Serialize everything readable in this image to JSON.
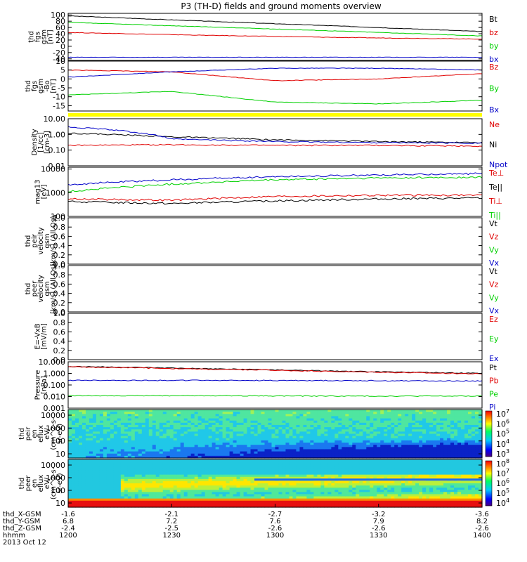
{
  "title": "P3 (TH-D) fields and ground moments overview",
  "colors": {
    "black": "#000000",
    "red": "#e00000",
    "green": "#00d000",
    "blue": "#0000c8",
    "yellow": "#ffff00"
  },
  "chart_data": [
    {
      "type": "line",
      "id": "fgs_gsm",
      "ylabel": [
        "thd",
        "fgs",
        "gsm",
        "[nT]"
      ],
      "y_ticks": [
        "100",
        "80",
        "60",
        "40",
        "20",
        "0",
        "-20",
        "-40"
      ],
      "ylim": [
        -45,
        105
      ],
      "legend": [
        {
          "name": "Bt",
          "color": "black"
        },
        {
          "name": "bz",
          "color": "red"
        },
        {
          "name": "by",
          "color": "green"
        },
        {
          "name": "bx",
          "color": "blue"
        }
      ],
      "series": [
        {
          "name": "Bt",
          "color": "black",
          "values": [
            97,
            80,
            64,
            47
          ]
        },
        {
          "name": "bz",
          "color": "red",
          "values": [
            44,
            35,
            28,
            23
          ]
        },
        {
          "name": "by",
          "color": "green",
          "values": [
            76,
            62,
            48,
            33
          ]
        },
        {
          "name": "bx",
          "color": "blue",
          "values": [
            -35,
            -35,
            -35,
            -35
          ]
        }
      ]
    },
    {
      "type": "line",
      "id": "fgs_rxy",
      "ylabel": [
        "thd",
        "fgs",
        "gsm",
        "-Bo",
        "[nT]"
      ],
      "y_ticks": [
        "10",
        "5",
        "0",
        "-5",
        "-10",
        "-15"
      ],
      "ylim": [
        -18,
        10
      ],
      "legend": [
        {
          "name": "Bz",
          "color": "red"
        },
        {
          "name": "By",
          "color": "green"
        },
        {
          "name": "Bx",
          "color": "blue"
        }
      ],
      "series": [
        {
          "name": "Bz",
          "color": "red",
          "values": [
            5,
            4,
            -1,
            0,
            3
          ]
        },
        {
          "name": "By",
          "color": "green",
          "values": [
            -9,
            -7,
            -13,
            -14,
            -12
          ]
        },
        {
          "name": "Bx",
          "color": "blue",
          "values": [
            1,
            4,
            6,
            6,
            5
          ]
        }
      ]
    },
    {
      "type": "line",
      "id": "density",
      "log": true,
      "ylabel": [
        "Density",
        "[1/cc]",
        "[cm-3]"
      ],
      "y_ticks": [
        "10.00",
        "1.00",
        "0.10",
        "0.01"
      ],
      "ylim": [
        0.01,
        10
      ],
      "legend": [
        {
          "name": "Ne",
          "color": "red"
        },
        {
          "name": "Ni",
          "color": "black"
        },
        {
          "name": "Npot",
          "color": "blue"
        }
      ],
      "series": [
        {
          "name": "Ne",
          "color": "red",
          "values": [
            0.2,
            0.22,
            0.2,
            0.2,
            0.18
          ]
        },
        {
          "name": "Ni",
          "color": "black",
          "values": [
            1.2,
            0.7,
            0.45,
            0.35,
            0.3
          ]
        },
        {
          "name": "Npot",
          "color": "blue",
          "values": [
            3.0,
            0.5,
            0.35,
            0.3,
            0.28
          ]
        }
      ]
    },
    {
      "type": "line",
      "id": "temperature",
      "log": true,
      "ylabel": [
        "mag13",
        "[eV]"
      ],
      "y_ticks": [
        "10000",
        "1000",
        "100"
      ],
      "ylim": [
        100,
        12000
      ],
      "legend": [
        {
          "name": "Te⊥",
          "color": "red"
        },
        {
          "name": "Te||",
          "color": "black"
        },
        {
          "name": "Ti⊥",
          "color": "red"
        },
        {
          "name": "Ti||",
          "color": "green"
        }
      ],
      "series": [
        {
          "name": "Ti⊥",
          "color": "blue",
          "values": [
            2200,
            3500,
            4800,
            5600,
            6500
          ]
        },
        {
          "name": "Ti||",
          "color": "green",
          "values": [
            1100,
            2300,
            3500,
            4200,
            4500
          ]
        },
        {
          "name": "Te⊥",
          "color": "red",
          "values": [
            550,
            480,
            700,
            780,
            800
          ]
        },
        {
          "name": "Te||",
          "color": "black",
          "values": [
            420,
            350,
            450,
            550,
            600
          ]
        }
      ]
    },
    {
      "type": "line",
      "id": "peir_vel",
      "ylabel": [
        "thd",
        "peir",
        "velocity",
        "gsm",
        "[km/s] (All Qs)"
      ],
      "y_ticks": [
        "1.0",
        "0.8",
        "0.6",
        "0.4",
        "0.2",
        "0.0"
      ],
      "ylim": [
        0,
        1
      ],
      "legend": [
        {
          "name": "Vt",
          "color": "black"
        },
        {
          "name": "Vz",
          "color": "red"
        },
        {
          "name": "Vy",
          "color": "green"
        },
        {
          "name": "Vx",
          "color": "blue"
        }
      ],
      "series": []
    },
    {
      "type": "line",
      "id": "peer_vel",
      "ylabel": [
        "thd",
        "peer",
        "velocity",
        "gsm",
        "[km/s] (All Qs)"
      ],
      "y_ticks": [
        "1.0",
        "0.8",
        "0.6",
        "0.4",
        "0.2",
        "0.0"
      ],
      "ylim": [
        0,
        1
      ],
      "legend": [
        {
          "name": "Vt",
          "color": "black"
        },
        {
          "name": "Vz",
          "color": "red"
        },
        {
          "name": "Vy",
          "color": "green"
        },
        {
          "name": "Vx",
          "color": "blue"
        }
      ],
      "series": []
    },
    {
      "type": "line",
      "id": "efield",
      "ylabel": [
        "E=-VxB",
        "[mV/m]"
      ],
      "y_ticks": [
        "1.0",
        "0.8",
        "0.6",
        "0.4",
        "0.2",
        "0.0"
      ],
      "ylim": [
        0,
        1
      ],
      "legend": [
        {
          "name": "Ez",
          "color": "red"
        },
        {
          "name": "Ey",
          "color": "green"
        },
        {
          "name": "Ex",
          "color": "blue"
        }
      ],
      "series": []
    },
    {
      "type": "line",
      "id": "pressure",
      "log": true,
      "ylabel": [
        "Pressure",
        "[nPa]"
      ],
      "y_ticks": [
        "10.000",
        "1.000",
        "0.100",
        "0.010",
        "0.001"
      ],
      "ylim": [
        0.001,
        10
      ],
      "legend": [
        {
          "name": "Pt",
          "color": "black"
        },
        {
          "name": "Pb",
          "color": "red"
        },
        {
          "name": "Pe",
          "color": "green"
        },
        {
          "name": "Pi",
          "color": "blue"
        }
      ],
      "series": [
        {
          "name": "Pt",
          "color": "black",
          "values": [
            4.0,
            2.5,
            1.5,
            1.0
          ]
        },
        {
          "name": "Pb",
          "color": "red",
          "values": [
            3.7,
            2.3,
            1.4,
            0.9
          ]
        },
        {
          "name": "Pi",
          "color": "blue",
          "values": [
            0.25,
            0.25,
            0.24,
            0.22
          ]
        },
        {
          "name": "Pe",
          "color": "green",
          "values": [
            0.012,
            0.012,
            0.011,
            0.011
          ]
        }
      ]
    },
    {
      "type": "heatmap",
      "id": "peir_en",
      "ylabel": [
        "thd",
        "peir",
        "en",
        "eflux",
        "eV/",
        "(cm^2-s-",
        "sr-eV)"
      ],
      "y_ticks": [
        "10000",
        "1000",
        "100",
        "10"
      ],
      "colorbar_ticks": [
        "10^7",
        "10^6",
        "10^5",
        "10^4",
        "10^3"
      ]
    },
    {
      "type": "heatmap",
      "id": "peer_en",
      "ylabel": [
        "thd",
        "peer",
        "en",
        "eflux",
        "eV/",
        "(cm^2-s-",
        "sr-eV)"
      ],
      "y_ticks": [
        "10000",
        "1000",
        "100",
        "10"
      ],
      "colorbar_ticks": [
        "10^8",
        "10^7",
        "10^6",
        "10^5",
        "10^4"
      ]
    }
  ],
  "x_axis": {
    "rows": [
      {
        "label": "thd_X-GSM",
        "values": [
          "-1.6",
          "-2.1",
          "-2.7",
          "-3.2",
          "-3.6"
        ]
      },
      {
        "label": "thd_Y-GSM",
        "values": [
          "6.8",
          "7.2",
          "7.6",
          "7.9",
          "8.2"
        ]
      },
      {
        "label": "thd_Z-GSM",
        "values": [
          "-2.4",
          "-2.5",
          "-2.6",
          "-2.6",
          "-2.6"
        ]
      },
      {
        "label": "hhmm",
        "values": [
          "1200",
          "1230",
          "1300",
          "1330",
          "1400"
        ]
      }
    ],
    "date": "2013 Oct 12"
  }
}
